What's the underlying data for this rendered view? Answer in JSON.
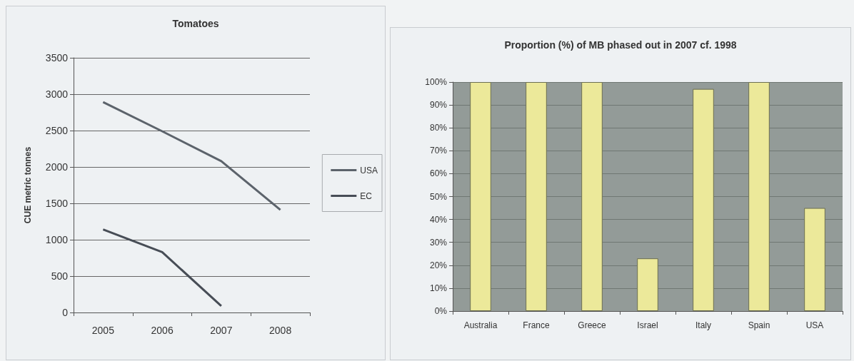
{
  "chart_data": [
    {
      "type": "line",
      "title": "Tomatoes",
      "ylabel": "CUE metric tonnes",
      "categories": [
        "2005",
        "2006",
        "2007",
        "2008"
      ],
      "series": [
        {
          "name": "USA",
          "color": "#5c636b",
          "values": [
            2890,
            2490,
            2080,
            1410
          ]
        },
        {
          "name": "EC",
          "color": "#474d56",
          "values": [
            1140,
            830,
            90,
            null
          ]
        }
      ],
      "ylim": [
        0,
        3500
      ],
      "yticks": [
        0,
        500,
        1000,
        1500,
        2000,
        2500,
        3000,
        3500
      ],
      "grid": "y",
      "legend": "right",
      "marker": "none",
      "line_style": "solid"
    },
    {
      "type": "bar",
      "title": "Proportion (%) of MB phased out in 2007 cf. 1998",
      "categories": [
        "Australia",
        "France",
        "Greece",
        "Israel",
        "Italy",
        "Spain",
        "USA"
      ],
      "values": [
        100,
        100,
        100,
        23,
        97,
        100,
        45
      ],
      "color": "#ece99a",
      "ylim": [
        0,
        100
      ],
      "yticks": [
        {
          "value": 0,
          "label": "0%"
        },
        {
          "value": 10,
          "label": "10%"
        },
        {
          "value": 20,
          "label": "20%"
        },
        {
          "value": 30,
          "label": "30%"
        },
        {
          "value": 40,
          "label": "40%"
        },
        {
          "value": 50,
          "label": "50%"
        },
        {
          "value": 60,
          "label": "60%"
        },
        {
          "value": 70,
          "label": "70%"
        },
        {
          "value": 80,
          "label": "80%"
        },
        {
          "value": 90,
          "label": "90%"
        },
        {
          "value": 100,
          "label": "100%"
        }
      ],
      "grid": "y",
      "legend": false
    }
  ]
}
